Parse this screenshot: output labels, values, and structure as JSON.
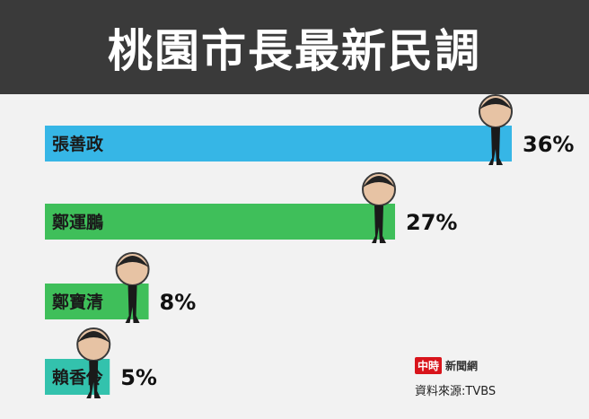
{
  "title": "桃園市長最新民調",
  "chart_data": {
    "type": "bar",
    "orientation": "horizontal",
    "categories": [
      "張善政",
      "鄭運鵬",
      "鄭寶清",
      "賴香伶"
    ],
    "values": [
      36,
      27,
      8,
      5
    ],
    "value_labels": [
      "36%",
      "27%",
      "8%",
      "5%"
    ],
    "colors": [
      "#36b6e6",
      "#3fbf5a",
      "#3fbf5a",
      "#33c2ad"
    ],
    "xlim": [
      0,
      36
    ],
    "grid": false,
    "legend": "none",
    "title": "桃園市長最新民調"
  },
  "logo": {
    "badge": "中時",
    "text": "新聞網"
  },
  "source": "資料來源:TVBS"
}
